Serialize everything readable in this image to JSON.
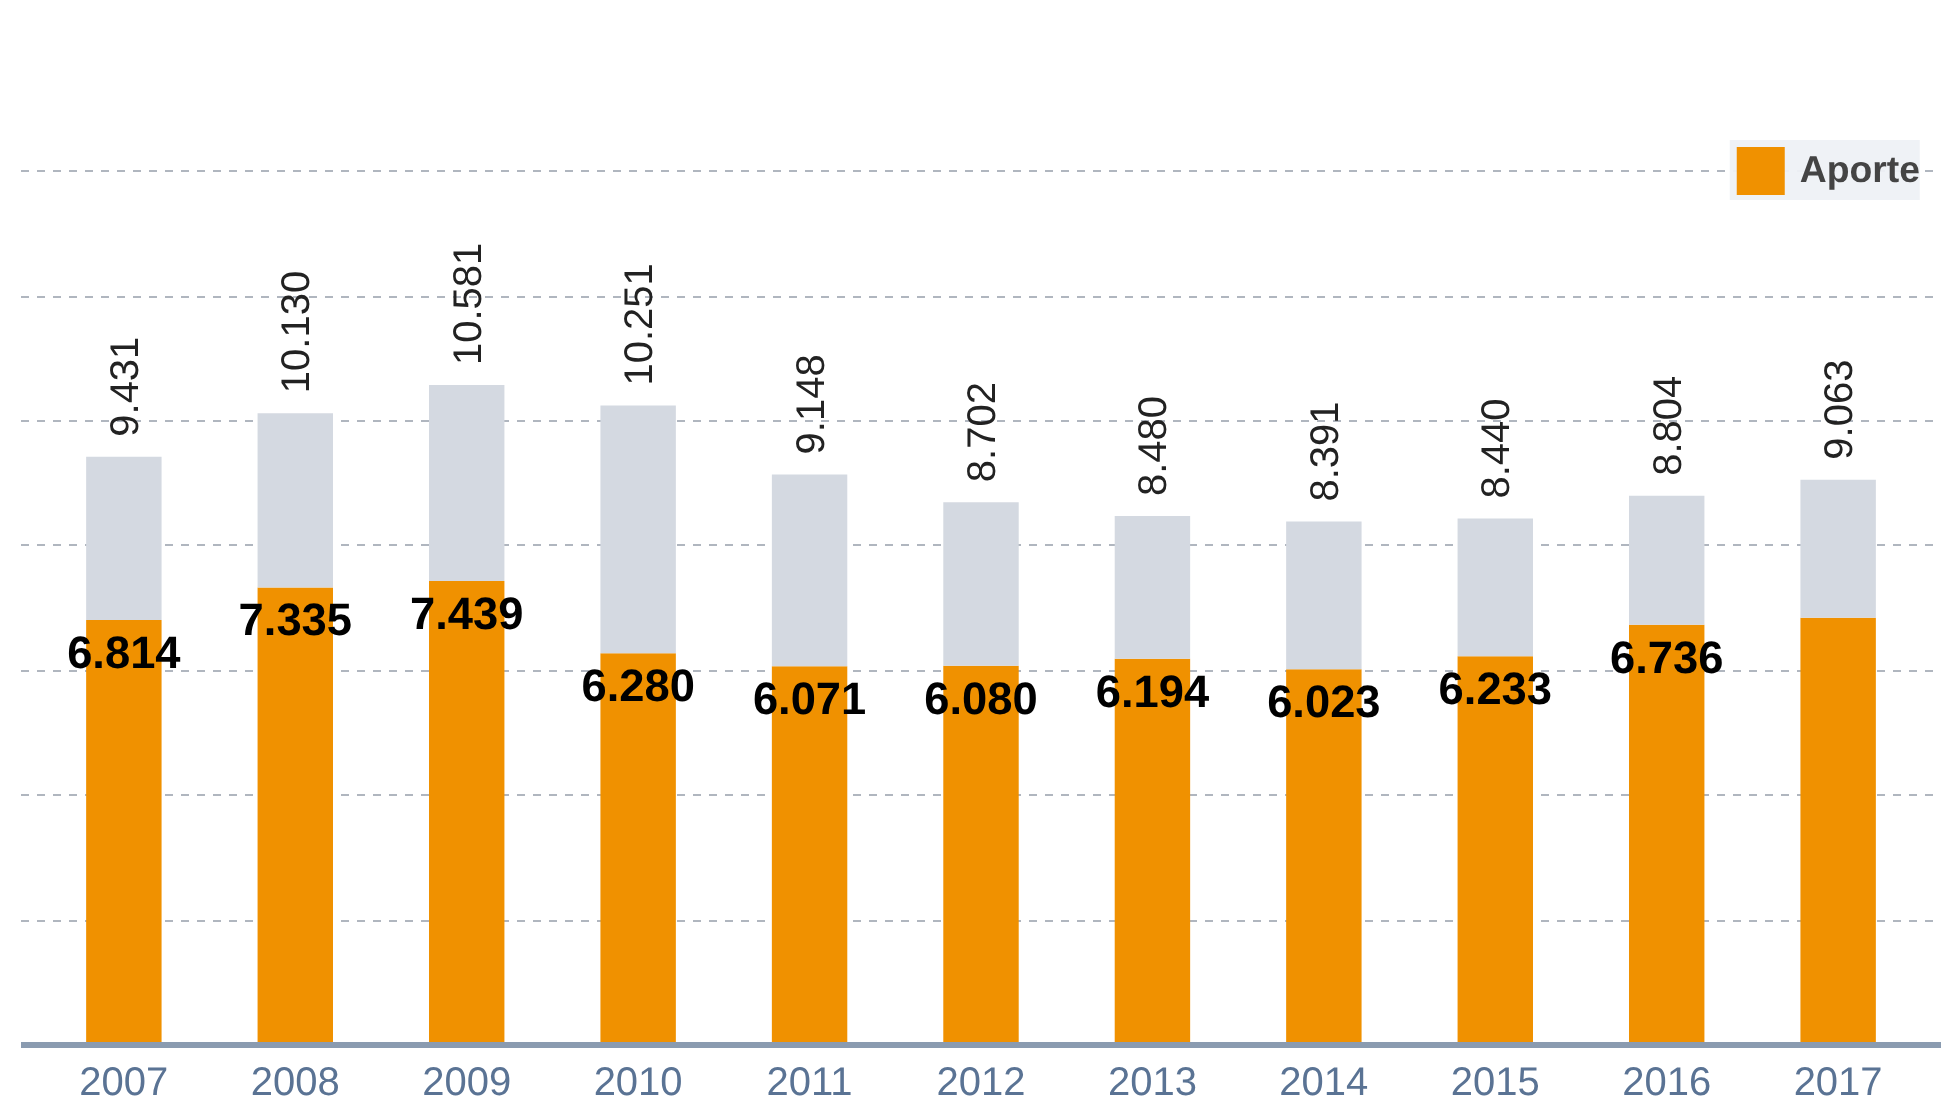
{
  "chart_data": {
    "type": "bar",
    "stacked": true,
    "categories": [
      "2007",
      "2008",
      "2009",
      "2010",
      "2011",
      "2012",
      "2013",
      "2014",
      "2015",
      "2016",
      "2017"
    ],
    "series": [
      {
        "name": "Aporte",
        "color": "#f09100",
        "values": [
          6.814,
          7.335,
          7.439,
          6.28,
          6.071,
          6.08,
          6.194,
          6.023,
          6.233,
          6.736,
          6.85
        ],
        "value_labels": [
          "6.814",
          "7.335",
          "7.439",
          "6.280",
          "6.071",
          "6.080",
          "6.194",
          "6.023",
          "6.233",
          "6.736",
          null
        ]
      },
      {
        "color": "#d4d9e1",
        "values": [
          2.617,
          2.795,
          3.142,
          3.971,
          3.077,
          2.622,
          2.286,
          2.368,
          2.207,
          2.068,
          2.213
        ]
      }
    ],
    "totals": [
      "9.431",
      "10.130",
      "10.581",
      "10.251",
      "9.148",
      "8.702",
      "8.480",
      "8.391",
      "8.440",
      "8.804",
      "9.063"
    ],
    "grid": "y",
    "legend": "top right",
    "tick_labels": "x"
  }
}
